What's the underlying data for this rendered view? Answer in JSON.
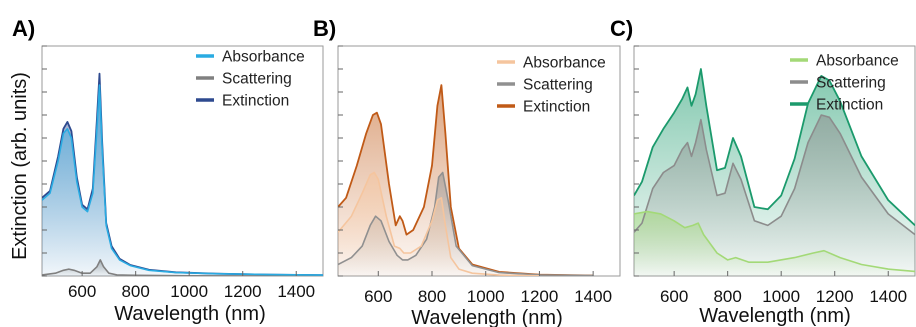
{
  "figure": {
    "ylabel": "Extinction (arb. units)"
  },
  "chart_data": [
    {
      "type": "line",
      "panel_label": "A)",
      "xlabel": "Wavelength (nm)",
      "ylabel": "Extinction (arb. units)",
      "xlim": [
        450,
        1500
      ],
      "ylim": [
        0,
        1.0
      ],
      "xticks": [
        600,
        800,
        1000,
        1200,
        1400
      ],
      "xtick_labels": [
        "600",
        "800",
        "1000",
        "1200",
        "1400"
      ],
      "yticks": [
        0.0,
        0.1,
        0.2,
        0.3,
        0.4,
        0.5,
        0.6,
        0.7,
        0.8,
        0.9,
        1.0
      ],
      "ytick_labels_visible": false,
      "legend": "top-right",
      "fill": "gradient-under-curves",
      "series": [
        {
          "name": "Absorbance",
          "color": "#29abe2",
          "x": [
            450,
            480,
            510,
            530,
            545,
            560,
            580,
            600,
            620,
            640,
            655,
            665,
            675,
            690,
            710,
            740,
            780,
            850,
            950,
            1100,
            1300,
            1500
          ],
          "y": [
            0.33,
            0.36,
            0.5,
            0.62,
            0.64,
            0.6,
            0.41,
            0.3,
            0.28,
            0.36,
            0.64,
            0.83,
            0.55,
            0.22,
            0.12,
            0.07,
            0.045,
            0.025,
            0.015,
            0.01,
            0.006,
            0.004
          ]
        },
        {
          "name": "Scattering",
          "color": "#808080",
          "x": [
            450,
            500,
            530,
            550,
            570,
            600,
            630,
            655,
            668,
            680,
            700,
            730,
            800,
            1000,
            1500
          ],
          "y": [
            0.005,
            0.012,
            0.025,
            0.03,
            0.025,
            0.012,
            0.012,
            0.04,
            0.07,
            0.04,
            0.012,
            0.005,
            0.003,
            0.001,
            0.0
          ]
        },
        {
          "name": "Extinction",
          "color": "#2e4a8f",
          "x": [
            450,
            480,
            510,
            530,
            545,
            560,
            580,
            600,
            620,
            640,
            655,
            665,
            675,
            690,
            710,
            740,
            780,
            850,
            950,
            1100,
            1300,
            1500
          ],
          "y": [
            0.34,
            0.37,
            0.52,
            0.64,
            0.67,
            0.63,
            0.43,
            0.31,
            0.29,
            0.38,
            0.68,
            0.88,
            0.58,
            0.23,
            0.13,
            0.075,
            0.048,
            0.027,
            0.016,
            0.01,
            0.006,
            0.004
          ]
        }
      ]
    },
    {
      "type": "line",
      "panel_label": "B)",
      "xlabel": "Wavelength (nm)",
      "xlim": [
        450,
        1500
      ],
      "ylim": [
        0,
        1.0
      ],
      "xticks": [
        600,
        800,
        1000,
        1200,
        1400
      ],
      "xtick_labels": [
        "600",
        "800",
        "1000",
        "1200",
        "1400"
      ],
      "yticks": [
        0.0,
        0.1,
        0.2,
        0.3,
        0.4,
        0.5,
        0.6,
        0.7,
        0.8,
        0.9,
        1.0
      ],
      "ytick_labels_visible": false,
      "legend": "top-right",
      "fill": "gradient-under-curves",
      "series": [
        {
          "name": "Absorbance",
          "color": "#f5c59e",
          "x": [
            450,
            500,
            540,
            570,
            585,
            600,
            630,
            660,
            680,
            695,
            720,
            760,
            800,
            820,
            835,
            850,
            870,
            900,
            950,
            1050,
            1200
          ],
          "y": [
            0.19,
            0.26,
            0.36,
            0.44,
            0.45,
            0.42,
            0.26,
            0.13,
            0.12,
            0.1,
            0.1,
            0.13,
            0.24,
            0.33,
            0.34,
            0.22,
            0.08,
            0.03,
            0.012,
            0.004,
            0.001
          ]
        },
        {
          "name": "Scattering",
          "color": "#909090",
          "x": [
            450,
            500,
            540,
            570,
            590,
            610,
            640,
            670,
            690,
            710,
            740,
            780,
            810,
            825,
            840,
            860,
            890,
            950,
            1050,
            1200,
            1400
          ],
          "y": [
            0.05,
            0.08,
            0.13,
            0.22,
            0.26,
            0.24,
            0.15,
            0.09,
            0.07,
            0.07,
            0.09,
            0.16,
            0.3,
            0.43,
            0.45,
            0.33,
            0.13,
            0.045,
            0.015,
            0.005,
            0.002
          ]
        },
        {
          "name": "Extinction",
          "color": "#c05a17",
          "x": [
            450,
            480,
            520,
            555,
            580,
            595,
            610,
            640,
            665,
            680,
            690,
            705,
            730,
            770,
            800,
            820,
            835,
            850,
            870,
            900,
            950,
            1050,
            1200,
            1400
          ],
          "y": [
            0.3,
            0.34,
            0.48,
            0.62,
            0.7,
            0.71,
            0.66,
            0.4,
            0.22,
            0.26,
            0.24,
            0.18,
            0.2,
            0.3,
            0.48,
            0.74,
            0.83,
            0.62,
            0.3,
            0.12,
            0.05,
            0.018,
            0.006,
            0.002
          ]
        }
      ]
    },
    {
      "type": "line",
      "panel_label": "C)",
      "xlabel": "Wavelength (nm)",
      "xlim": [
        450,
        1500
      ],
      "ylim": [
        0,
        1.0
      ],
      "xticks": [
        600,
        800,
        1000,
        1200,
        1400
      ],
      "xtick_labels": [
        "600",
        "800",
        "1000",
        "1200",
        "1400"
      ],
      "yticks": [
        0.0,
        0.1,
        0.2,
        0.3,
        0.4,
        0.5,
        0.6,
        0.7,
        0.8,
        0.9,
        1.0
      ],
      "ytick_labels_visible": false,
      "legend": "top-right",
      "fill": "gradient-under-curves",
      "series": [
        {
          "name": "Absorbance",
          "color": "#a3d977",
          "x": [
            450,
            500,
            550,
            600,
            640,
            670,
            690,
            710,
            760,
            800,
            830,
            880,
            950,
            1050,
            1120,
            1160,
            1220,
            1300,
            1400,
            1500
          ],
          "y": [
            0.27,
            0.28,
            0.27,
            0.24,
            0.21,
            0.22,
            0.23,
            0.18,
            0.1,
            0.07,
            0.08,
            0.06,
            0.06,
            0.08,
            0.1,
            0.11,
            0.08,
            0.05,
            0.03,
            0.02
          ]
        },
        {
          "name": "Scattering",
          "color": "#8c8c8c",
          "x": [
            450,
            480,
            520,
            560,
            600,
            630,
            650,
            665,
            680,
            700,
            720,
            760,
            790,
            820,
            850,
            900,
            950,
            1000,
            1050,
            1100,
            1150,
            1180,
            1220,
            1300,
            1400,
            1500
          ],
          "y": [
            0.19,
            0.23,
            0.38,
            0.45,
            0.48,
            0.55,
            0.58,
            0.52,
            0.58,
            0.68,
            0.55,
            0.35,
            0.36,
            0.49,
            0.42,
            0.24,
            0.22,
            0.26,
            0.38,
            0.58,
            0.7,
            0.69,
            0.62,
            0.43,
            0.27,
            0.18
          ]
        },
        {
          "name": "Extinction",
          "color": "#1b9a6c",
          "x": [
            450,
            480,
            520,
            560,
            600,
            630,
            650,
            665,
            680,
            700,
            720,
            760,
            790,
            820,
            850,
            900,
            950,
            1000,
            1050,
            1100,
            1150,
            1180,
            1220,
            1300,
            1400,
            1500
          ],
          "y": [
            0.35,
            0.41,
            0.56,
            0.64,
            0.71,
            0.77,
            0.82,
            0.74,
            0.79,
            0.9,
            0.74,
            0.46,
            0.47,
            0.6,
            0.52,
            0.3,
            0.29,
            0.35,
            0.51,
            0.75,
            0.87,
            0.85,
            0.76,
            0.52,
            0.33,
            0.22
          ]
        }
      ]
    }
  ]
}
